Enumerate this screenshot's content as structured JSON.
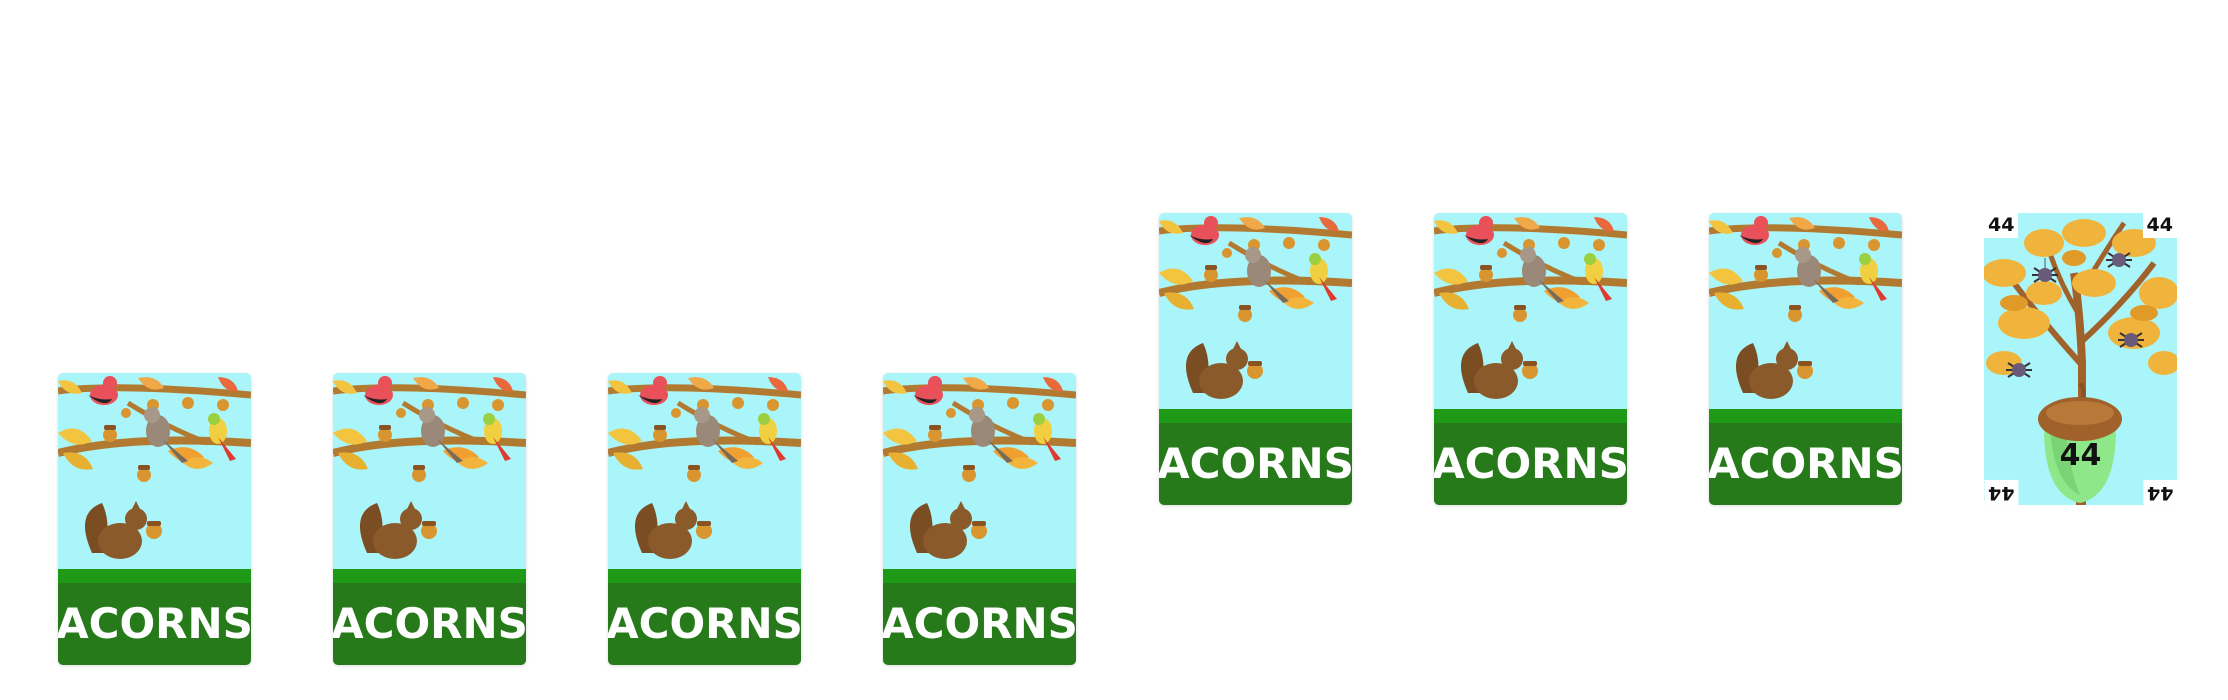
{
  "deck": {
    "back_title": "ACORNS"
  },
  "face_card": {
    "value": "44",
    "corner_value": "44",
    "icon": "acorn-icon",
    "decorations": [
      "oak-tree-icon",
      "spider-icon"
    ]
  },
  "colors": {
    "sky": "#aaf5fa",
    "banner": "#267a1a",
    "grass": "#1f9a16",
    "text": "#ffffff",
    "acorn_cap": "#a0622a",
    "acorn_body": "#8ee88a",
    "branch": "#b27a30",
    "leaf": "#f0b43c"
  },
  "cards": [
    {
      "kind": "back",
      "row": "lower"
    },
    {
      "kind": "back",
      "row": "lower"
    },
    {
      "kind": "back",
      "row": "lower"
    },
    {
      "kind": "back",
      "row": "lower"
    },
    {
      "kind": "back",
      "row": "upper"
    },
    {
      "kind": "back",
      "row": "upper"
    },
    {
      "kind": "back",
      "row": "upper"
    },
    {
      "kind": "face",
      "row": "upper"
    }
  ]
}
